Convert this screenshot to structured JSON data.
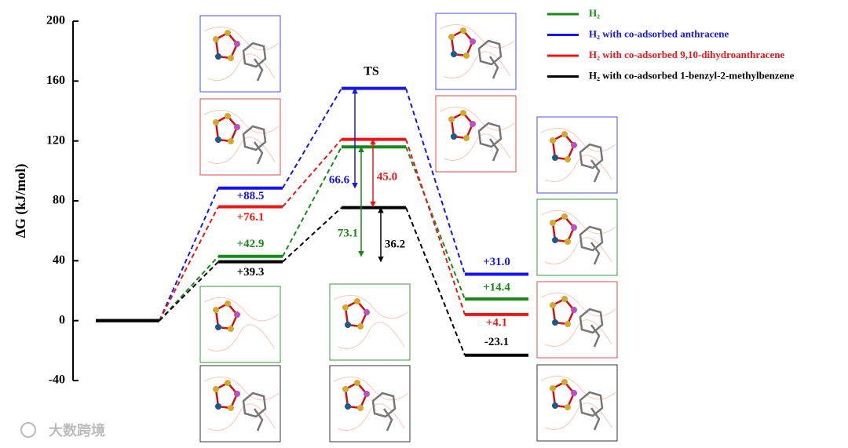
{
  "chart_data": {
    "type": "energy-profile",
    "y_label": "ΔG (kJ/mol)",
    "ylim": [
      -40,
      200
    ],
    "yticks": [
      -40,
      0,
      40,
      80,
      120,
      160,
      200
    ],
    "ts_label": "TS",
    "series": [
      {
        "name": "H₂",
        "color": "#168a16",
        "values": [
          0,
          42.9,
          116.0,
          14.4
        ],
        "value_labels": [
          null,
          "+42.9",
          null,
          "+14.4"
        ]
      },
      {
        "name": "H₂ with co-adsorbed anthracene",
        "color": "#1515ee",
        "values": [
          0,
          88.5,
          155.1,
          31.0
        ],
        "value_labels": [
          null,
          "+88.5",
          null,
          "+31.0"
        ]
      },
      {
        "name": "H₂ with co-adsorbed 9,10-dihydroanthracene",
        "color": "#e81818",
        "values": [
          0,
          76.1,
          121.1,
          4.1
        ],
        "value_labels": [
          null,
          "+76.1",
          null,
          "+4.1"
        ]
      },
      {
        "name": "H₂ with co-adsorbed 1-benzyl-2-methylbenzene",
        "color": "#000000",
        "values": [
          0,
          39.3,
          75.5,
          -23.1
        ],
        "value_labels": [
          null,
          "+39.3",
          null,
          "-23.1"
        ]
      }
    ],
    "barriers": {
      "values": [
        73.1,
        66.6,
        45.0,
        36.2
      ],
      "value_labels": [
        "73.1",
        "66.6",
        "45.0",
        "36.2"
      ]
    },
    "watermark": "大数跨境"
  }
}
